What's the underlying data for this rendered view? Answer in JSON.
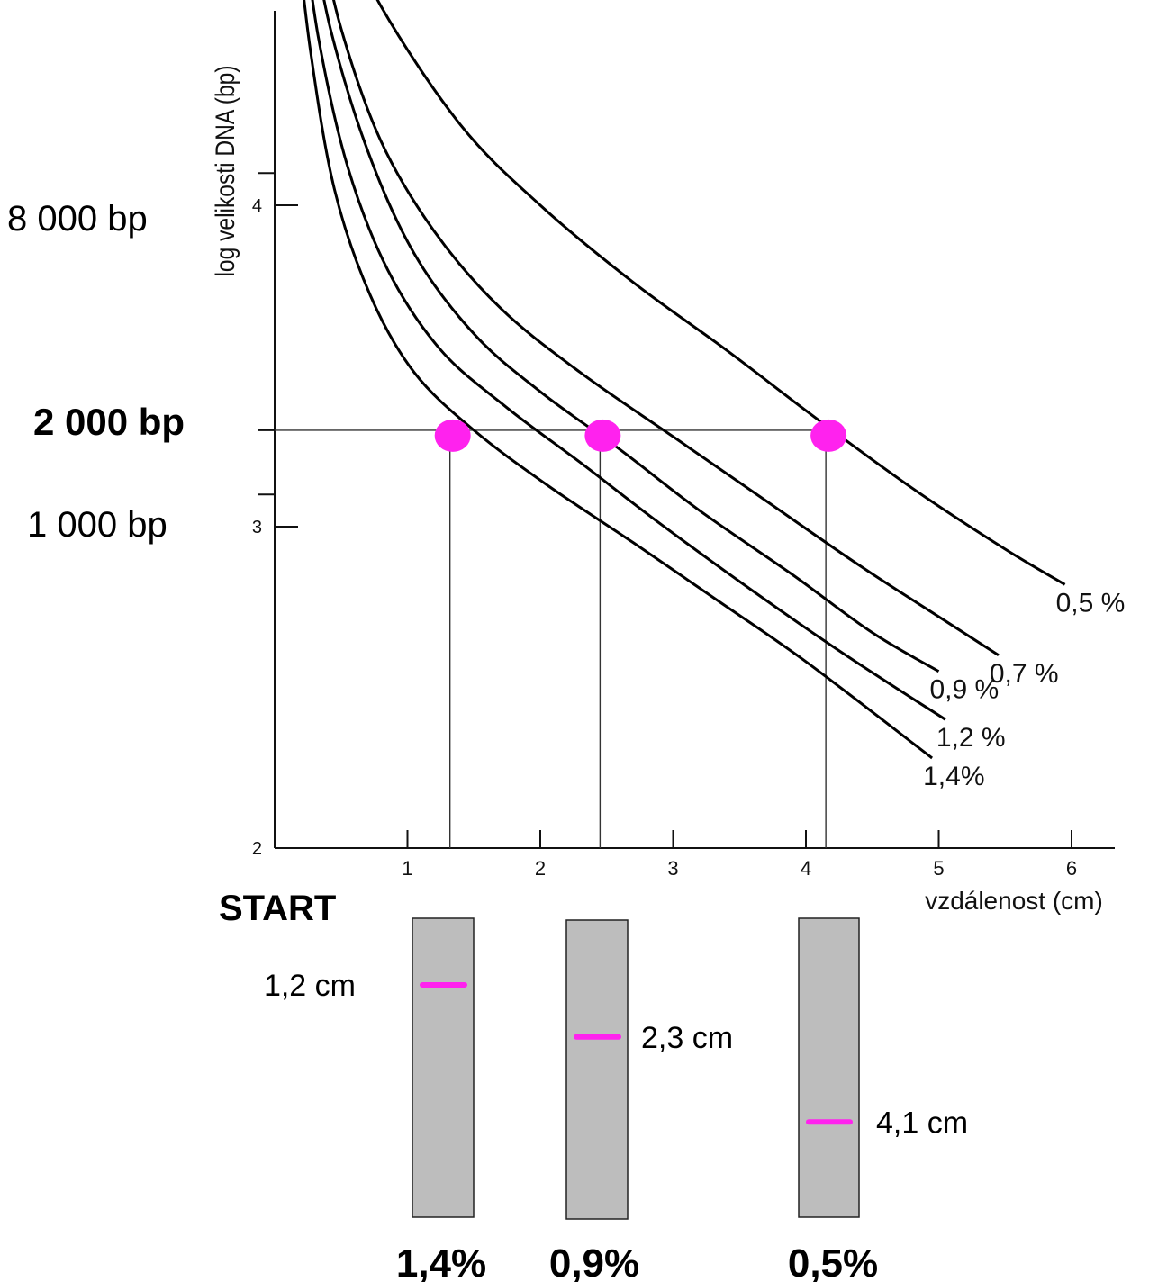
{
  "chart_data": {
    "type": "line",
    "xlabel": "vzdálenost (cm)",
    "ylabel": "log velikosti DNA  (bp)",
    "y_scale": "log10",
    "xlim": [
      0,
      6.3
    ],
    "ylim": [
      2,
      4.95
    ],
    "x_ticks": [
      "1",
      "2",
      "3",
      "4",
      "5",
      "6"
    ],
    "y_ticks": [
      "2",
      "3",
      "4"
    ],
    "series": [
      {
        "name": "0,5 %",
        "x": [
          0.43,
          0.8,
          1.4,
          2.0,
          2.7,
          3.4,
          4.1,
          4.8,
          5.5,
          5.95
        ],
        "y": [
          4.95,
          4.62,
          4.25,
          4.0,
          3.76,
          3.55,
          3.33,
          3.12,
          2.93,
          2.82
        ]
      },
      {
        "name": "0,7 %",
        "x": [
          0.3,
          0.5,
          0.8,
          1.2,
          1.7,
          2.3,
          3.0,
          3.7,
          4.4,
          5.0,
          5.45
        ],
        "y": [
          4.91,
          4.55,
          4.2,
          3.92,
          3.68,
          3.48,
          3.28,
          3.08,
          2.88,
          2.72,
          2.6
        ]
      },
      {
        "name": "0,9 %",
        "x": [
          0.25,
          0.42,
          0.7,
          1.05,
          1.5,
          2.0,
          2.6,
          3.2,
          3.9,
          4.5,
          5.0
        ],
        "y": [
          4.91,
          4.55,
          4.17,
          3.85,
          3.6,
          3.42,
          3.24,
          3.05,
          2.85,
          2.67,
          2.55
        ]
      },
      {
        "name": "1,2 %",
        "x": [
          0.2,
          0.33,
          0.55,
          0.85,
          1.25,
          1.75,
          2.3,
          2.9,
          3.6,
          4.3,
          5.05
        ],
        "y": [
          4.91,
          4.52,
          4.12,
          3.8,
          3.55,
          3.37,
          3.2,
          3.01,
          2.8,
          2.6,
          2.4
        ]
      },
      {
        "name": "1,4%",
        "x": [
          0.15,
          0.27,
          0.45,
          0.72,
          1.05,
          1.5,
          2.05,
          2.7,
          3.3,
          4.0,
          4.95
        ],
        "y": [
          4.91,
          4.48,
          4.05,
          3.72,
          3.48,
          3.3,
          3.13,
          2.95,
          2.78,
          2.58,
          2.28
        ]
      }
    ],
    "reference_line": {
      "y": 3.3
    },
    "points": [
      {
        "x": 1.32,
        "y": 3.3
      },
      {
        "x": 2.45,
        "y": 3.3
      },
      {
        "x": 4.15,
        "y": 3.3
      }
    ],
    "colors": {
      "axis": "#111111",
      "curve": "#000000",
      "marker": "#ff22ee",
      "gel": "#bdbdbd"
    }
  },
  "size_labels": {
    "top": "8 000 bp",
    "middle": "2 000 bp",
    "bottom": "1 000 bp"
  },
  "start_label": "START",
  "gels": [
    {
      "band_label": "1,2 cm",
      "band_position_cm": 1.2,
      "concentration": "1,4%"
    },
    {
      "band_label": "2,3 cm",
      "band_position_cm": 2.3,
      "concentration": "0,9%"
    },
    {
      "band_label": "4,1 cm",
      "band_position_cm": 4.1,
      "concentration": "0,5%"
    }
  ]
}
